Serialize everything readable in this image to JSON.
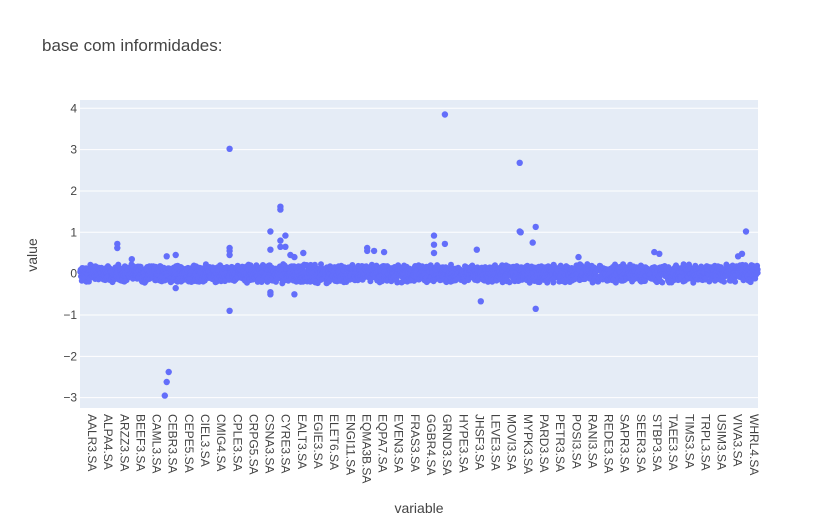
{
  "chart_data": {
    "type": "scatter",
    "title": "base com informidades:",
    "xlabel": "variable",
    "ylabel": "value",
    "ylim": [
      -3.25,
      4.2
    ],
    "y_ticks": [
      -3,
      -2,
      -1,
      0,
      1,
      2,
      3,
      4
    ],
    "y_tick_labels": [
      "−3",
      "−2",
      "−1",
      "0",
      "1",
      "2",
      "3",
      "4"
    ],
    "grid": true,
    "marker_color": "#636efa",
    "plot_bg": "#e5ecf6",
    "categories": [
      "AALR3.SA",
      "ALPA4.SA",
      "ARZZ3.SA",
      "BEEF3.SA",
      "CAML3.SA",
      "CEBR3.SA",
      "CEPE5.SA",
      "CIEL3.SA",
      "CMIG4.SA",
      "CPLE3.SA",
      "CRPG5.SA",
      "CSNA3.SA",
      "CYRE3.SA",
      "EALT3.SA",
      "EGIE3.SA",
      "ELET6.SA",
      "ENGI11.SA",
      "EQMA3B.SA",
      "EQPA7.SA",
      "EVEN3.SA",
      "FRAS3.SA",
      "GGBR4.SA",
      "GRND3.SA",
      "HYPE3.SA",
      "JHSF3.SA",
      "LEVE3.SA",
      "MOVI3.SA",
      "MYPK3.SA",
      "PARD3.SA",
      "PETR3.SA",
      "POSI3.SA",
      "RANI3.SA",
      "REDE3.SA",
      "SAPR3.SA",
      "SEER3.SA",
      "STBP3.SA",
      "TAEE3.SA",
      "TIMS3.SA",
      "TRPL3.SA",
      "USIM3.SA",
      "VIVA3.SA",
      "WHRL4.SA"
    ],
    "outliers": [
      {
        "x": 1.87,
        "y": 0.72
      },
      {
        "x": 1.87,
        "y": 0.62
      },
      {
        "x": 2.6,
        "y": 0.35
      },
      {
        "x": 4.25,
        "y": -2.95
      },
      {
        "x": 4.35,
        "y": -2.62
      },
      {
        "x": 4.45,
        "y": -2.38
      },
      {
        "x": 4.35,
        "y": 0.42
      },
      {
        "x": 4.8,
        "y": 0.45
      },
      {
        "x": 4.8,
        "y": -0.35
      },
      {
        "x": 7.5,
        "y": 3.02
      },
      {
        "x": 7.5,
        "y": 0.62
      },
      {
        "x": 7.5,
        "y": 0.55
      },
      {
        "x": 7.5,
        "y": 0.45
      },
      {
        "x": 7.5,
        "y": -0.9
      },
      {
        "x": 9.55,
        "y": 1.02
      },
      {
        "x": 9.55,
        "y": 0.58
      },
      {
        "x": 9.55,
        "y": -0.45
      },
      {
        "x": 9.55,
        "y": -0.5
      },
      {
        "x": 10.05,
        "y": 1.62
      },
      {
        "x": 10.05,
        "y": 1.55
      },
      {
        "x": 10.05,
        "y": 0.8
      },
      {
        "x": 10.05,
        "y": 0.65
      },
      {
        "x": 10.3,
        "y": 0.92
      },
      {
        "x": 10.3,
        "y": 0.65
      },
      {
        "x": 10.55,
        "y": 0.45
      },
      {
        "x": 10.75,
        "y": 0.4
      },
      {
        "x": 10.75,
        "y": -0.5
      },
      {
        "x": 11.2,
        "y": 0.5
      },
      {
        "x": 14.4,
        "y": 0.62
      },
      {
        "x": 14.4,
        "y": 0.55
      },
      {
        "x": 14.75,
        "y": 0.55
      },
      {
        "x": 15.25,
        "y": 0.52
      },
      {
        "x": 17.75,
        "y": 0.92
      },
      {
        "x": 17.75,
        "y": 0.7
      },
      {
        "x": 17.75,
        "y": 0.5
      },
      {
        "x": 18.3,
        "y": 3.85
      },
      {
        "x": 18.3,
        "y": 0.72
      },
      {
        "x": 19.9,
        "y": 0.58
      },
      {
        "x": 20.1,
        "y": -0.67
      },
      {
        "x": 22.05,
        "y": 2.68
      },
      {
        "x": 22.05,
        "y": 1.02
      },
      {
        "x": 22.1,
        "y": 1.0
      },
      {
        "x": 22.7,
        "y": 0.75
      },
      {
        "x": 22.85,
        "y": 1.13
      },
      {
        "x": 22.85,
        "y": -0.85
      },
      {
        "x": 25.0,
        "y": 0.4
      },
      {
        "x": 28.8,
        "y": 0.52
      },
      {
        "x": 29.05,
        "y": 0.48
      },
      {
        "x": 33.0,
        "y": 0.42
      },
      {
        "x": 33.2,
        "y": 0.48
      },
      {
        "x": 33.4,
        "y": 1.02
      }
    ],
    "x_range": [
      0,
      34
    ]
  }
}
